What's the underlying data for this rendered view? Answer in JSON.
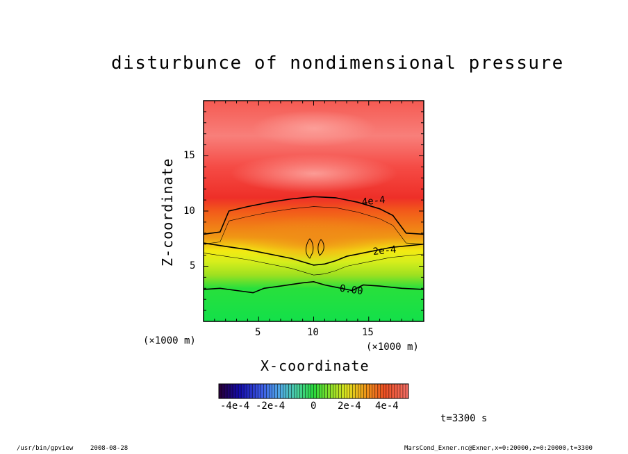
{
  "chart_data": {
    "type": "heatmap",
    "title": "disturbunce of nondimensional pressure",
    "xlabel": "X-coordinate",
    "ylabel": "Z-coordinate",
    "x_unit": "(×1000 m)",
    "y_unit": "(×1000 m)",
    "xlim": [
      0,
      20
    ],
    "ylim": [
      0,
      20
    ],
    "x_ticks": [
      5,
      10,
      15
    ],
    "y_ticks": [
      5,
      10,
      15
    ],
    "color_scale": {
      "min": -0.0005,
      "max": 0.0005,
      "tick_labels": [
        "-4e-4",
        "-2e-4",
        "0",
        "2e-4",
        "4e-4"
      ],
      "tick_values": [
        -0.0004,
        -0.0002,
        0,
        0.0002,
        0.0004
      ]
    },
    "contours": [
      {
        "label": "4e-4",
        "level": 0.0004,
        "x": [
          0,
          1.5,
          2.3,
          4,
          6,
          8,
          10,
          12,
          14,
          16,
          17.2,
          18.4,
          20
        ],
        "z": [
          7.9,
          8.1,
          10.0,
          10.4,
          10.8,
          11.1,
          11.3,
          11.2,
          10.8,
          10.2,
          9.6,
          8.0,
          7.9
        ]
      },
      {
        "label": "2e-4",
        "level": 0.0002,
        "x": [
          0,
          2,
          4,
          6,
          8,
          10,
          11,
          12,
          13,
          15,
          17,
          20
        ],
        "z": [
          7.1,
          6.8,
          6.5,
          6.1,
          5.7,
          5.1,
          5.2,
          5.5,
          5.9,
          6.3,
          6.7,
          7.0
        ]
      },
      {
        "label": "0.00",
        "level": 0,
        "x": [
          0,
          1.5,
          3,
          4.5,
          5.5,
          7,
          9,
          10,
          11,
          12,
          13.5,
          14.5,
          16,
          18,
          20
        ],
        "z": [
          2.9,
          3.0,
          2.8,
          2.6,
          3.0,
          3.2,
          3.5,
          3.6,
          3.3,
          3.1,
          2.8,
          3.3,
          3.2,
          3.0,
          2.9
        ]
      }
    ],
    "field_bands": [
      {
        "z_from": 0,
        "z_to": 3,
        "value": -0.0001
      },
      {
        "z_from": 3,
        "z_to": 5,
        "value": 0.0001
      },
      {
        "z_from": 5,
        "z_to": 7,
        "value": 0.00026
      },
      {
        "z_from": 7,
        "z_to": 10.5,
        "value": 0.00038
      },
      {
        "z_from": 10.5,
        "z_to": 20,
        "value": 0.00046
      }
    ]
  },
  "time_label": "t=3300 s",
  "footer": {
    "program": "/usr/bin/gpview",
    "date": "2008-08-28",
    "source": "MarsCond_Exner.nc@Exner,x=0:20000,z=0:20000,t=3300"
  }
}
